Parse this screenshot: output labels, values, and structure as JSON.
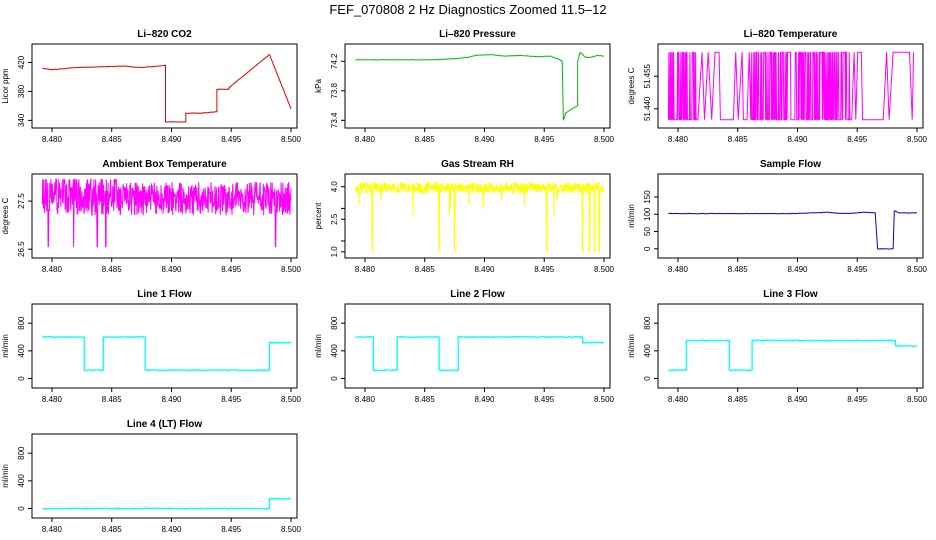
{
  "page": {
    "title": "FEF_070808  2 Hz Diagnostics Zoomed 11.5–12"
  },
  "chart_data": [
    {
      "type": "line",
      "title": "Li–820 CO2",
      "ylabel": "Licor ppm",
      "color": "#e00000",
      "xlim": [
        8.479,
        8.5
      ],
      "ylim": [
        335,
        440
      ],
      "x_ticks": [
        8.48,
        8.485,
        8.49,
        8.495,
        8.5
      ],
      "x_tick_labels": [
        "8.480",
        "8.485",
        "8.490",
        "8.495",
        "8.500"
      ],
      "y_ticks": [
        340,
        380,
        420
      ],
      "y_tick_labels": [
        "340",
        "380",
        "420"
      ],
      "series": [
        {
          "x": [
            8.4792,
            8.48,
            8.482,
            8.484,
            8.486,
            8.4875,
            8.4895,
            8.4895,
            8.4912,
            8.4912,
            8.4925,
            8.4925,
            8.4938,
            8.4938,
            8.4948,
            8.4948,
            8.4982,
            8.4982,
            8.5
          ],
          "y": [
            412,
            410,
            413,
            414,
            415,
            413,
            416,
            338,
            338,
            350,
            350,
            350,
            352,
            383,
            383,
            385,
            431,
            431,
            356
          ]
        }
      ]
    },
    {
      "type": "line",
      "title": "Li–820 Pressure",
      "ylabel": "kPa",
      "color": "#00bb00",
      "xlim": [
        8.479,
        8.5
      ],
      "ylim": [
        73.35,
        74.38
      ],
      "x_ticks": [
        8.48,
        8.485,
        8.49,
        8.495,
        8.5
      ],
      "x_tick_labels": [
        "8.480",
        "8.485",
        "8.490",
        "8.495",
        "8.500"
      ],
      "y_ticks": [
        73.4,
        73.8,
        74.2
      ],
      "y_tick_labels": [
        "73.4",
        "73.8",
        "74.2"
      ],
      "series": [
        {
          "x": [
            8.4792,
            8.482,
            8.4855,
            8.487,
            8.4885,
            8.4893,
            8.4905,
            8.4917,
            8.493,
            8.4945,
            8.4955,
            8.4962,
            8.4965,
            8.4966,
            8.4968,
            8.4978,
            8.4978,
            8.498,
            8.4985,
            8.499,
            8.4995,
            8.5
          ],
          "y": [
            74.22,
            74.22,
            74.22,
            74.23,
            74.25,
            74.28,
            74.29,
            74.27,
            74.28,
            74.26,
            74.27,
            74.23,
            74.2,
            73.4,
            73.5,
            73.6,
            74.2,
            74.32,
            74.25,
            74.26,
            74.28,
            74.27
          ]
        }
      ]
    },
    {
      "type": "line",
      "title": "Li–820 Temperature",
      "ylabel": "degrees C",
      "color": "#ff00ff",
      "xlim": [
        8.479,
        8.5
      ],
      "ylim": [
        51.433,
        51.468
      ],
      "x_ticks": [
        8.48,
        8.485,
        8.49,
        8.495,
        8.5
      ],
      "x_tick_labels": [
        "8.480",
        "8.485",
        "8.490",
        "8.495",
        "8.500"
      ],
      "y_ticks": [
        51.44,
        51.455
      ],
      "y_tick_labels": [
        "51.440",
        "51.455"
      ],
      "series": [
        {
          "x": [
            8.4792,
            8.5
          ],
          "y": [
            51.435,
            51.466
          ]
        }
      ]
    },
    {
      "type": "line",
      "title": "Ambient Box Temperature",
      "ylabel": "degrees C",
      "color": "#ff00ff",
      "xlim": [
        8.479,
        8.5
      ],
      "ylim": [
        26.4,
        27.98
      ],
      "x_ticks": [
        8.48,
        8.485,
        8.49,
        8.495,
        8.5
      ],
      "x_tick_labels": [
        "8.480",
        "8.485",
        "8.490",
        "8.495",
        "8.500"
      ],
      "y_ticks": [
        26.5,
        27.5
      ],
      "y_tick_labels": [
        "26.5",
        "27.5"
      ],
      "series": [
        {
          "x": [
            8.4792,
            8.5
          ],
          "y": [
            27.2,
            27.9
          ]
        }
      ]
    },
    {
      "type": "line",
      "title": "Gas Stream RH",
      "ylabel": "percent",
      "color": "#ffff00",
      "xlim": [
        8.479,
        8.5
      ],
      "ylim": [
        0.9,
        4.4
      ],
      "x_ticks": [
        8.48,
        8.485,
        8.49,
        8.495,
        8.5
      ],
      "x_tick_labels": [
        "8.480",
        "8.485",
        "8.490",
        "8.495",
        "8.500"
      ],
      "y_ticks": [
        1.0,
        1.5,
        2.5,
        3.0,
        4.0
      ],
      "y_tick_labels": [
        "1.0",
        "",
        "2.5",
        "",
        "4.0"
      ],
      "series": [
        {
          "x": [
            8.4792,
            8.5
          ],
          "y": [
            3.7,
            4.2
          ]
        }
      ]
    },
    {
      "type": "line",
      "title": "Sample Flow",
      "ylabel": "ml/min",
      "color": "#0000cc",
      "xlim": [
        8.479,
        8.5
      ],
      "ylim": [
        -15,
        205
      ],
      "x_ticks": [
        8.48,
        8.485,
        8.49,
        8.495,
        8.5
      ],
      "x_tick_labels": [
        "8.480",
        "8.485",
        "8.490",
        "8.495",
        "8.500"
      ],
      "y_ticks": [
        0,
        50,
        100,
        150
      ],
      "y_tick_labels": [
        "0",
        "50",
        "100",
        "150"
      ],
      "series": [
        {
          "x": [
            8.4792,
            8.482,
            8.486,
            8.489,
            8.4905,
            8.4915,
            8.4925,
            8.4935,
            8.4945,
            8.4955,
            8.4965,
            8.4967,
            8.498,
            8.4981,
            8.4985,
            8.5
          ],
          "y": [
            102,
            102,
            102,
            102,
            103,
            104,
            106,
            103,
            103,
            106,
            104,
            0,
            0,
            110,
            104,
            104
          ]
        }
      ]
    },
    {
      "type": "line",
      "title": "Line 1 Flow",
      "ylabel": "ml/min",
      "color": "#00ffff",
      "xlim": [
        8.479,
        8.5
      ],
      "ylim": [
        -80,
        1020
      ],
      "x_ticks": [
        8.48,
        8.485,
        8.49,
        8.495,
        8.5
      ],
      "x_tick_labels": [
        "8.480",
        "8.485",
        "8.490",
        "8.495",
        "8.500"
      ],
      "y_ticks": [
        0,
        400,
        800
      ],
      "y_tick_labels": [
        "0",
        "400",
        "800"
      ],
      "series": [
        {
          "x": [
            8.4792,
            8.4827,
            8.4827,
            8.4843,
            8.4843,
            8.4878,
            8.4878,
            8.4982,
            8.4982,
            8.5
          ],
          "y": [
            600,
            600,
            120,
            120,
            600,
            600,
            120,
            120,
            520,
            520
          ]
        }
      ]
    },
    {
      "type": "line",
      "title": "Line 2 Flow",
      "ylabel": "ml/min",
      "color": "#00ffff",
      "xlim": [
        8.479,
        8.5
      ],
      "ylim": [
        -80,
        1020
      ],
      "x_ticks": [
        8.48,
        8.485,
        8.49,
        8.495,
        8.5
      ],
      "x_tick_labels": [
        "8.480",
        "8.485",
        "8.490",
        "8.495",
        "8.500"
      ],
      "y_ticks": [
        0,
        400,
        800
      ],
      "y_tick_labels": [
        "0",
        "400",
        "800"
      ],
      "series": [
        {
          "x": [
            8.4792,
            8.4807,
            8.4807,
            8.4827,
            8.4827,
            8.4862,
            8.4862,
            8.4878,
            8.4878,
            8.4982,
            8.4982,
            8.5
          ],
          "y": [
            600,
            600,
            120,
            120,
            600,
            600,
            120,
            120,
            600,
            600,
            520,
            520
          ]
        }
      ]
    },
    {
      "type": "line",
      "title": "Line 3 Flow",
      "ylabel": "ml/min",
      "color": "#00ffff",
      "xlim": [
        8.479,
        8.5
      ],
      "ylim": [
        -80,
        1020
      ],
      "x_ticks": [
        8.48,
        8.485,
        8.49,
        8.495,
        8.5
      ],
      "x_tick_labels": [
        "8.480",
        "8.485",
        "8.490",
        "8.495",
        "8.500"
      ],
      "y_ticks": [
        0,
        400,
        800
      ],
      "y_tick_labels": [
        "0",
        "400",
        "800"
      ],
      "series": [
        {
          "x": [
            8.4792,
            8.4807,
            8.4807,
            8.4843,
            8.4843,
            8.4862,
            8.4862,
            8.4982,
            8.4982,
            8.5
          ],
          "y": [
            120,
            120,
            550,
            550,
            120,
            120,
            550,
            550,
            470,
            470
          ]
        }
      ]
    },
    {
      "type": "line",
      "title": "Line 4 (LT) Flow",
      "ylabel": "ml/min",
      "color": "#00ffff",
      "xlim": [
        8.479,
        8.5
      ],
      "ylim": [
        -80,
        1020
      ],
      "x_ticks": [
        8.48,
        8.485,
        8.49,
        8.495,
        8.5
      ],
      "x_tick_labels": [
        "8.480",
        "8.485",
        "8.490",
        "8.495",
        "8.500"
      ],
      "y_ticks": [
        0,
        400,
        800
      ],
      "y_tick_labels": [
        "0",
        "400",
        "800"
      ],
      "series": [
        {
          "x": [
            8.4792,
            8.4982,
            8.4982,
            8.5
          ],
          "y": [
            0,
            0,
            140,
            140
          ]
        }
      ]
    }
  ]
}
